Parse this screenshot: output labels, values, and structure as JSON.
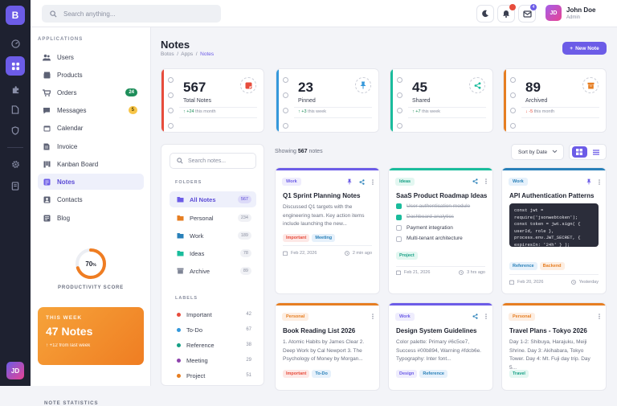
{
  "rail": {
    "logo": "B",
    "avatar": "JD"
  },
  "topbar": {
    "search_placeholder": "Search anything...",
    "notif_count": "",
    "mail_count": "4",
    "user_name": "John Doe",
    "user_role": "Admin",
    "user_initials": "JD"
  },
  "sidebar": {
    "section_label": "APPLICATIONS",
    "items": [
      {
        "label": "Users"
      },
      {
        "label": "Products"
      },
      {
        "label": "Orders",
        "badge": "24"
      },
      {
        "label": "Messages",
        "badge": "5"
      },
      {
        "label": "Calendar"
      },
      {
        "label": "Invoice"
      },
      {
        "label": "Kanban Board"
      },
      {
        "label": "Notes"
      },
      {
        "label": "Contacts"
      },
      {
        "label": "Blog"
      }
    ],
    "productivity": {
      "value": "70",
      "unit": "%",
      "label": "PRODUCTIVITY SCORE",
      "fraction": 0.7
    },
    "promo": {
      "week": "THIS WEEK",
      "notes": "47 Notes",
      "change": "+12 from last week"
    },
    "stats_label": "NOTE STATISTICS"
  },
  "page": {
    "title": "Notes",
    "crumb_1": "Botos",
    "crumb_2": "Apps",
    "crumb_3": "Notes",
    "new_button": "New Note"
  },
  "stats": [
    {
      "value": "567",
      "label": "Total Notes",
      "trend": "+24",
      "trend_text": "this month",
      "trend_dir": "up",
      "color": "#e74c3c"
    },
    {
      "value": "23",
      "label": "Pinned",
      "trend": "+3",
      "trend_text": "this week",
      "trend_dir": "up",
      "color": "#3498db"
    },
    {
      "value": "45",
      "label": "Shared",
      "trend": "+7",
      "trend_text": "this week",
      "trend_dir": "up",
      "color": "#1abc9c"
    },
    {
      "value": "89",
      "label": "Archived",
      "trend": "-5",
      "trend_text": "this month",
      "trend_dir": "down",
      "color": "#e67e22"
    }
  ],
  "filters": {
    "search_placeholder": "Search notes...",
    "folders_label": "FOLDERS",
    "folders": [
      {
        "label": "All Notes",
        "count": "567"
      },
      {
        "label": "Personal",
        "count": "234"
      },
      {
        "label": "Work",
        "count": "189"
      },
      {
        "label": "Ideas",
        "count": "78"
      },
      {
        "label": "Archive",
        "count": "89"
      }
    ],
    "labels_label": "LABELS",
    "labels": [
      {
        "label": "Important",
        "count": "42"
      },
      {
        "label": "To-Do",
        "count": "67"
      },
      {
        "label": "Reference",
        "count": "38"
      },
      {
        "label": "Meeting",
        "count": "29"
      },
      {
        "label": "Project",
        "count": "51"
      }
    ]
  },
  "list": {
    "showing_prefix": "Showing",
    "showing_count": "567",
    "showing_suffix": "notes",
    "sort": "Sort by Date"
  },
  "cards": [
    {
      "tag": "Work",
      "title": "Q1 Sprint Planning Notes",
      "body": "Discussed Q1 targets with the engineering team. Key action items include launching the new...",
      "chips": [
        "Important",
        "Meeting"
      ],
      "date": "Feb 22, 2026",
      "time": "2 min ago"
    },
    {
      "tag": "Ideas",
      "title": "SaaS Product Roadmap Ideas",
      "checklist": [
        {
          "text": "User authentication module",
          "done": true
        },
        {
          "text": "Dashboard analytics",
          "done": true
        },
        {
          "text": "Payment integration",
          "done": false
        },
        {
          "text": "Multi-tenant architecture",
          "done": false
        }
      ],
      "chips": [
        "Project"
      ],
      "date": "Feb 21, 2026",
      "time": "3 hrs ago"
    },
    {
      "tag": "Work",
      "title": "API Authentication Patterns",
      "code": "const jwt =\nrequire('jsonwebtoken');\nconst token = jwt.sign( {\nuserId, role },\nprocess.env.JWT_SECRET, {\nexpiresIn: '24h' } );",
      "chips": [
        "Reference",
        "Backend"
      ],
      "date": "Feb 20, 2026",
      "time": "Yesterday"
    },
    {
      "tag": "Personal",
      "title": "Book Reading List 2026",
      "body": "1. Atomic Habits by James Clear 2. Deep Work by Cal Newport 3. The Psychology of Money by Morgan...",
      "chips": [
        "Important",
        "To-Do"
      ]
    },
    {
      "tag": "Work",
      "title": "Design System Guidelines",
      "body": "Color palette: Primary #6c5ce7, Success #00b894, Warning #fdcb6e. Typography: Inter font...",
      "chips": [
        "Design",
        "Reference"
      ]
    },
    {
      "tag": "Personal",
      "title": "Travel Plans - Tokyo 2026",
      "body": "Day 1-2: Shibuya, Harajuku, Meiji Shrine. Day 3: Akihabara, Tokyo Tower. Day 4: Mt. Fuji day trip. Day 5...",
      "chips": [
        "Travel"
      ]
    }
  ]
}
